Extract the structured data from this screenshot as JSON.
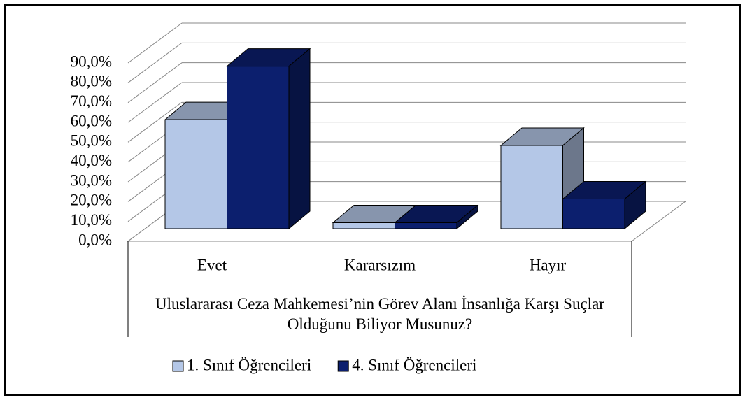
{
  "chart_data": {
    "type": "bar3d",
    "x_label": "Uluslararası Ceza Mahkemesi’nin Görev Alanı İnsanlığa Karşı Suçlar Olduğunu Biliyor Musunuz?",
    "categories": [
      "Evet",
      "Kararsızım",
      "Hayır"
    ],
    "series": [
      {
        "name": "1. Sınıf Öğrencileri",
        "color": "#b4c7e7",
        "values": [
          55,
          3,
          42
        ]
      },
      {
        "name": "4. Sınıf Öğrencileri",
        "color": "#0c1f6e",
        "values": [
          82,
          3,
          15
        ]
      }
    ],
    "ylim": [
      0,
      90
    ],
    "yticks": [
      {
        "value": 0,
        "label": "0,0%"
      },
      {
        "value": 10,
        "label": "10,0%"
      },
      {
        "value": 20,
        "label": "20,0%"
      },
      {
        "value": 30,
        "label": "30,0%"
      },
      {
        "value": 40,
        "label": "40,0%"
      },
      {
        "value": 50,
        "label": "50,0%"
      },
      {
        "value": 60,
        "label": "60,0%"
      },
      {
        "value": 70,
        "label": "70,0%"
      },
      {
        "value": 80,
        "label": "80,0%"
      },
      {
        "value": 90,
        "label": "90,0%"
      }
    ],
    "grid": true,
    "legend": "bottom"
  }
}
